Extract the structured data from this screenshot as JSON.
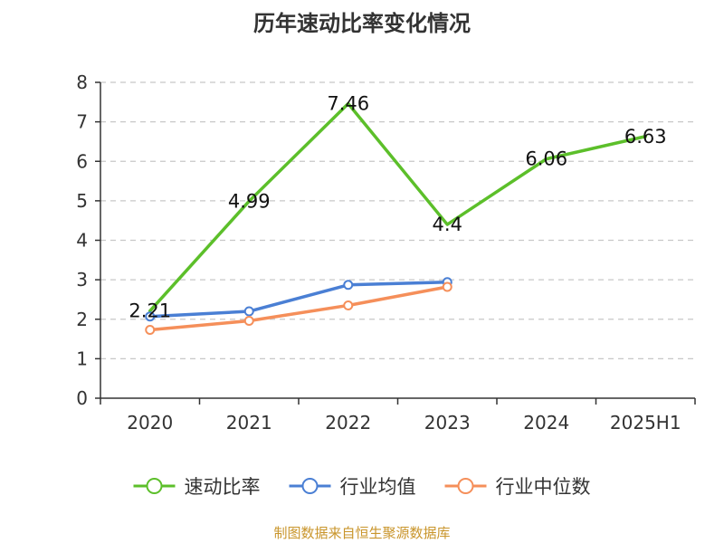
{
  "chart_data": {
    "type": "line",
    "title": "历年速动比率变化情况",
    "categories": [
      "2020",
      "2021",
      "2022",
      "2023",
      "2024",
      "2025H1"
    ],
    "ylim": [
      0,
      8
    ],
    "yticks": [
      0,
      1,
      2,
      3,
      4,
      5,
      6,
      7,
      8
    ],
    "grid": true,
    "legend_position": "bottom",
    "series": [
      {
        "name": "速动比率",
        "color": "#5cbf2a",
        "values": [
          2.21,
          4.99,
          7.46,
          4.4,
          6.06,
          6.63
        ],
        "data_labels": [
          "2.21",
          "4.99",
          "7.46",
          "4.4",
          "6.06",
          "6.63"
        ],
        "show_markers": false
      },
      {
        "name": "行业均值",
        "color": "#4a7fd4",
        "values": [
          2.07,
          2.2,
          2.87,
          2.94,
          null,
          null
        ],
        "show_markers": true
      },
      {
        "name": "行业中位数",
        "color": "#f58f5a",
        "values": [
          1.73,
          1.96,
          2.35,
          2.82,
          null,
          null
        ],
        "show_markers": true
      }
    ]
  },
  "source_note": "制图数据来自恒生聚源数据库",
  "source_color": "#c9952b"
}
